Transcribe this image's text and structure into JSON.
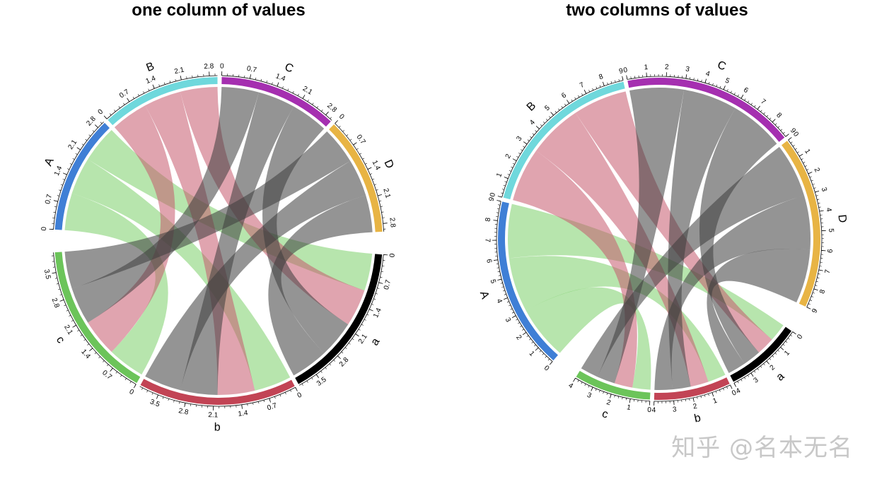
{
  "watermark": "知乎 @名本无名",
  "colors": {
    "A": "#3f7fd6",
    "B": "#6fd8dc",
    "C": "#a52fb0",
    "D": "#e8b444",
    "a": "#000000",
    "b": "#c24455",
    "c": "#6cc45a",
    "link_A": "#7ccf6a",
    "link_B": "#c65a6e",
    "link_C": "#3c3c3c",
    "link_D": "#3c3c3c"
  },
  "chart_data": [
    {
      "type": "chord",
      "title": "one column of values",
      "sectors": [
        {
          "name": "A",
          "total": 3,
          "labels": [
            "0",
            "0.7",
            "1.4",
            "2.1",
            "2.8"
          ]
        },
        {
          "name": "B",
          "total": 3,
          "labels": [
            "0",
            "0.7",
            "1.4",
            "2.1",
            "2.8"
          ]
        },
        {
          "name": "C",
          "total": 3,
          "labels": [
            "0",
            "0.7",
            "1.4",
            "2.1",
            "2.8"
          ]
        },
        {
          "name": "D",
          "total": 3,
          "labels": [
            "0",
            "0.7",
            "1.4",
            "2.1",
            "2.8"
          ]
        },
        {
          "name": "a",
          "total": 4,
          "labels": [
            "0",
            "0.7",
            "1.4",
            "2.1",
            "2.8",
            "3.5"
          ]
        },
        {
          "name": "b",
          "total": 4,
          "labels": [
            "0",
            "0.7",
            "1.4",
            "2.1",
            "2.8",
            "3.5"
          ]
        },
        {
          "name": "c",
          "total": 4,
          "labels": [
            "0",
            "0.7",
            "1.4",
            "2.1",
            "2.8",
            "3.5"
          ]
        }
      ],
      "links": [
        {
          "from": "A",
          "to": "c",
          "value": 1
        },
        {
          "from": "A",
          "to": "b",
          "value": 1
        },
        {
          "from": "A",
          "to": "a",
          "value": 1
        },
        {
          "from": "B",
          "to": "c",
          "value": 1
        },
        {
          "from": "B",
          "to": "b",
          "value": 1
        },
        {
          "from": "B",
          "to": "a",
          "value": 1
        },
        {
          "from": "C",
          "to": "c",
          "value": 1
        },
        {
          "from": "C",
          "to": "b",
          "value": 1
        },
        {
          "from": "C",
          "to": "a",
          "value": 1
        },
        {
          "from": "D",
          "to": "c",
          "value": 1
        },
        {
          "from": "D",
          "to": "b",
          "value": 1
        },
        {
          "from": "D",
          "to": "a",
          "value": 1
        }
      ]
    },
    {
      "type": "chord",
      "title": "two columns of values",
      "sectors": [
        {
          "name": "A",
          "total": 9,
          "labels": [
            "0",
            "1",
            "2",
            "3",
            "4",
            "5",
            "6",
            "7",
            "8",
            "9"
          ]
        },
        {
          "name": "B",
          "total": 9,
          "labels": [
            "0",
            "1",
            "2",
            "3",
            "4",
            "5",
            "6",
            "7",
            "8",
            "9"
          ]
        },
        {
          "name": "C",
          "total": 9,
          "labels": [
            "0",
            "1",
            "2",
            "3",
            "4",
            "5",
            "6",
            "7",
            "8",
            "9"
          ]
        },
        {
          "name": "D",
          "total": 9,
          "labels": [
            "0",
            "1",
            "2",
            "3",
            "4",
            "5",
            "6",
            "7",
            "8",
            "9"
          ]
        },
        {
          "name": "a",
          "total": 4,
          "labels": [
            "0",
            "1",
            "2",
            "3",
            "4"
          ]
        },
        {
          "name": "b",
          "total": 4,
          "labels": [
            "0",
            "1",
            "2",
            "3",
            "4"
          ]
        },
        {
          "name": "c",
          "total": 4,
          "labels": [
            "0",
            "1",
            "2",
            "3",
            "4"
          ]
        }
      ],
      "links": [
        {
          "from": "A",
          "to": "c",
          "value": 3,
          "value2": 1
        },
        {
          "from": "A",
          "to": "b",
          "value": 3,
          "value2": 1
        },
        {
          "from": "A",
          "to": "a",
          "value": 3,
          "value2": 1
        },
        {
          "from": "B",
          "to": "c",
          "value": 3,
          "value2": 1
        },
        {
          "from": "B",
          "to": "b",
          "value": 3,
          "value2": 1
        },
        {
          "from": "B",
          "to": "a",
          "value": 3,
          "value2": 1
        },
        {
          "from": "C",
          "to": "c",
          "value": 3,
          "value2": 1
        },
        {
          "from": "C",
          "to": "b",
          "value": 3,
          "value2": 1
        },
        {
          "from": "C",
          "to": "a",
          "value": 3,
          "value2": 1
        },
        {
          "from": "D",
          "to": "c",
          "value": 3,
          "value2": 1
        },
        {
          "from": "D",
          "to": "b",
          "value": 3,
          "value2": 1
        },
        {
          "from": "D",
          "to": "a",
          "value": 3,
          "value2": 1
        }
      ]
    }
  ]
}
